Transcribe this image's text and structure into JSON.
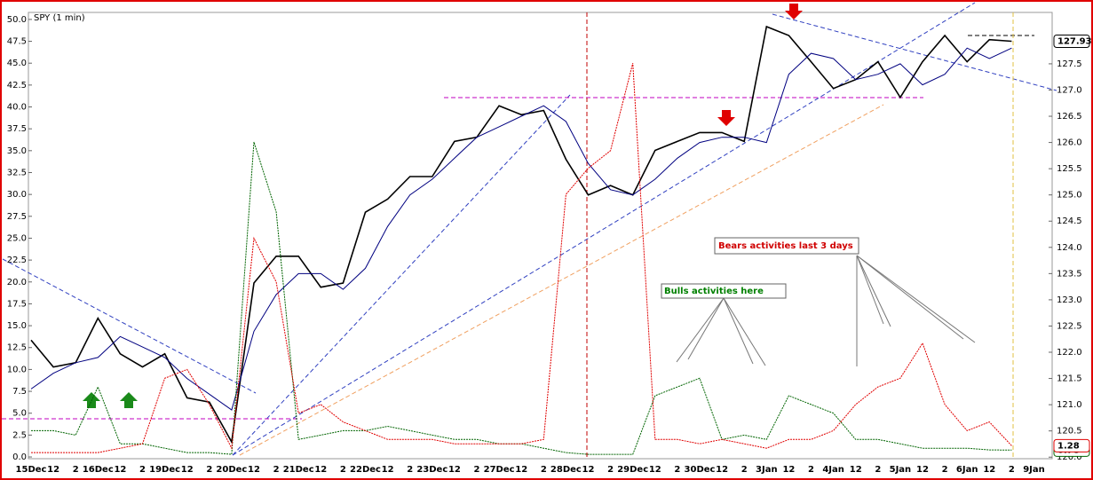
{
  "chart_data": {
    "type": "line",
    "title": "SPY (1 min)",
    "categories": [
      "15Dec",
      "12",
      "2",
      "16Dec",
      "12",
      "2",
      "19Dec",
      "12",
      "2",
      "20Dec",
      "12",
      "2",
      "21Dec",
      "12",
      "2",
      "22Dec",
      "12",
      "2",
      "23Dec",
      "12",
      "2",
      "27Dec",
      "12",
      "2",
      "28Dec",
      "12",
      "2",
      "29Dec",
      "12",
      "2",
      "30Dec",
      "12",
      "2",
      "3Jan",
      "12",
      "2",
      "4Jan",
      "12",
      "2",
      "5Jan",
      "12",
      "2",
      "6Jan",
      "12",
      "2",
      "9Jan"
    ],
    "ylim": [
      -0.2,
      50.8
    ],
    "yticks": [
      {
        "value": 0,
        "label": "0.0"
      },
      {
        "value": 2.5,
        "label": "2.5"
      },
      {
        "value": 5,
        "label": "5.0"
      },
      {
        "value": 7.5,
        "label": "7.5"
      },
      {
        "value": 10,
        "label": "10.0"
      },
      {
        "value": 12.5,
        "label": "12.5"
      },
      {
        "value": 15,
        "label": "15.0"
      },
      {
        "value": 17.5,
        "label": "17.5"
      },
      {
        "value": 20,
        "label": "20.0"
      },
      {
        "value": 22.5,
        "label": "22.5"
      },
      {
        "value": 25,
        "label": "25.0"
      },
      {
        "value": 27.5,
        "label": "27.5"
      },
      {
        "value": 30,
        "label": "30.0"
      },
      {
        "value": 32.5,
        "label": "32.5"
      },
      {
        "value": 35,
        "label": "35.0"
      },
      {
        "value": 37.5,
        "label": "37.5"
      },
      {
        "value": 40,
        "label": "40.0"
      },
      {
        "value": 42.5,
        "label": "42.5"
      },
      {
        "value": 45,
        "label": "45.0"
      },
      {
        "value": 47.5,
        "label": "47.5"
      },
      {
        "value": 50,
        "label": "50.0"
      }
    ],
    "y2lim": [
      119.97,
      128.48
    ],
    "y2ticks": [
      {
        "value": 120,
        "label": "120.0"
      },
      120.5,
      {
        "value": 121,
        "label": "121.0"
      },
      121.5,
      {
        "value": 122,
        "label": "122.0"
      },
      122.5,
      {
        "value": 123,
        "label": "123.0"
      },
      123.5,
      {
        "value": 124,
        "label": "124.0"
      },
      124.5,
      {
        "value": 125,
        "label": "125.0"
      },
      125.5,
      {
        "value": 126,
        "label": "126.0"
      },
      126.5,
      {
        "value": 127,
        "label": "127.0"
      },
      127.5
    ],
    "series": [
      {
        "name": "SPY",
        "color": "#000000",
        "axis": "y2",
        "last_label": "127.93",
        "values": [
          122.23,
          121.72,
          121.8,
          122.65,
          121.97,
          121.72,
          121.97,
          121.13,
          121.05,
          120.29,
          123.32,
          123.83,
          123.83,
          123.24,
          123.32,
          124.67,
          124.92,
          125.35,
          125.35,
          126.02,
          126.1,
          126.7,
          126.53,
          126.61,
          125.68,
          125.0,
          125.18,
          125.0,
          125.85,
          126.02,
          126.19,
          126.19,
          126.02,
          128.21,
          128.04,
          127.54,
          127.03,
          127.2,
          127.54,
          126.86,
          127.54,
          128.04,
          127.54,
          127.96,
          127.93,
          null
        ]
      },
      {
        "name": "MA",
        "color": "#000080",
        "axis": "y2",
        "values": [
          121.3,
          121.6,
          121.8,
          121.9,
          122.3,
          122.1,
          121.9,
          121.5,
          121.2,
          120.9,
          122.4,
          123.1,
          123.5,
          123.5,
          123.2,
          123.6,
          124.4,
          125.0,
          125.3,
          125.7,
          126.1,
          126.3,
          126.5,
          126.7,
          126.4,
          125.6,
          125.1,
          125.0,
          125.3,
          125.7,
          126.0,
          126.1,
          126.1,
          126.0,
          127.3,
          127.7,
          127.6,
          127.2,
          127.3,
          127.5,
          127.1,
          127.3,
          127.8,
          127.6,
          127.8,
          null
        ]
      },
      {
        "name": "Bulls",
        "color": "#006400",
        "last_label": "0.78",
        "values": [
          3,
          3,
          2.5,
          8,
          1.5,
          1.5,
          1,
          0.5,
          0.5,
          0.3,
          36,
          28,
          2,
          2.5,
          3,
          3,
          3.5,
          3,
          2.5,
          2,
          2,
          1.5,
          1.5,
          1,
          0.5,
          0.3,
          0.3,
          0.3,
          7,
          8,
          9,
          2,
          2.5,
          2,
          7,
          6,
          5,
          2,
          2,
          1.5,
          1,
          1,
          1,
          0.8,
          0.78,
          null
        ]
      },
      {
        "name": "Bears",
        "color": "#e00000",
        "last_label": "1.28",
        "values": [
          0.5,
          0.5,
          0.5,
          0.5,
          1,
          1.5,
          9,
          10,
          6,
          1,
          25,
          20,
          5,
          6,
          4,
          3,
          2,
          2,
          2,
          1.5,
          1.5,
          1.5,
          1.5,
          2,
          30,
          33,
          35,
          45,
          2,
          2,
          1.5,
          2,
          1.5,
          1,
          2,
          2,
          3,
          6,
          8,
          9,
          13,
          6,
          3,
          4,
          1.28,
          null
        ]
      }
    ],
    "annotations": [
      "Bulls activities here",
      "Bears activities last 3 days"
    ]
  }
}
